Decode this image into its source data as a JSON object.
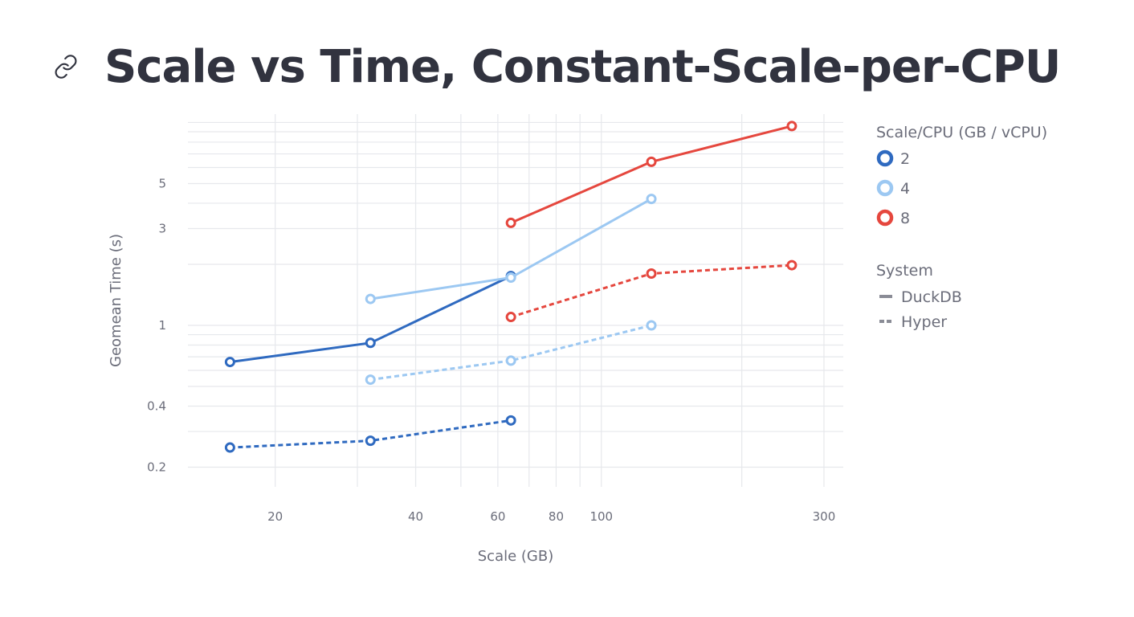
{
  "page": {
    "title": "Scale vs Time, Constant-Scale-per-CPU"
  },
  "colors": {
    "series_2": "#2f6ac0",
    "series_4": "#9cc8f2",
    "series_8": "#e5473e",
    "grid": "#e6e8ec",
    "text": "#6b6d7a",
    "title": "#31333f"
  },
  "chart_data": {
    "type": "line",
    "xlabel": "Scale (GB)",
    "ylabel": "Geomean Time (s)",
    "x_scale": "log",
    "y_scale": "log",
    "xlim": [
      13,
      330
    ],
    "ylim": [
      0.16,
      11
    ],
    "x_ticks": [
      20,
      40,
      60,
      80,
      100,
      300
    ],
    "y_ticks": [
      0.2,
      0.4,
      1,
      3,
      5
    ],
    "grid": true,
    "legend": {
      "placement": "right",
      "color_title": "Scale/CPU (GB / vCPU)",
      "color_entries": [
        {
          "label": "2",
          "color": "#2f6ac0"
        },
        {
          "label": "4",
          "color": "#9cc8f2"
        },
        {
          "label": "8",
          "color": "#e5473e"
        }
      ],
      "style_title": "System",
      "style_entries": [
        {
          "label": "DuckDB",
          "dash": "solid"
        },
        {
          "label": "Hyper",
          "dash": "dashed"
        }
      ]
    },
    "series": [
      {
        "scale_per_cpu": "2",
        "system": "DuckDB",
        "color": "#2f6ac0",
        "dashed": false,
        "x": [
          16,
          32,
          64
        ],
        "y": [
          0.66,
          0.82,
          1.75
        ]
      },
      {
        "scale_per_cpu": "4",
        "system": "DuckDB",
        "color": "#9cc8f2",
        "dashed": false,
        "x": [
          32,
          64,
          128
        ],
        "y": [
          1.35,
          1.72,
          4.2
        ]
      },
      {
        "scale_per_cpu": "8",
        "system": "DuckDB",
        "color": "#e5473e",
        "dashed": false,
        "x": [
          64,
          128,
          256
        ],
        "y": [
          3.2,
          6.4,
          9.6
        ]
      },
      {
        "scale_per_cpu": "2",
        "system": "Hyper",
        "color": "#2f6ac0",
        "dashed": true,
        "x": [
          16,
          32,
          64
        ],
        "y": [
          0.25,
          0.27,
          0.34
        ]
      },
      {
        "scale_per_cpu": "4",
        "system": "Hyper",
        "color": "#9cc8f2",
        "dashed": true,
        "x": [
          32,
          64,
          128
        ],
        "y": [
          0.54,
          0.67,
          1.0
        ]
      },
      {
        "scale_per_cpu": "8",
        "system": "Hyper",
        "color": "#e5473e",
        "dashed": true,
        "x": [
          64,
          128,
          256
        ],
        "y": [
          1.1,
          1.8,
          1.98
        ]
      }
    ]
  }
}
